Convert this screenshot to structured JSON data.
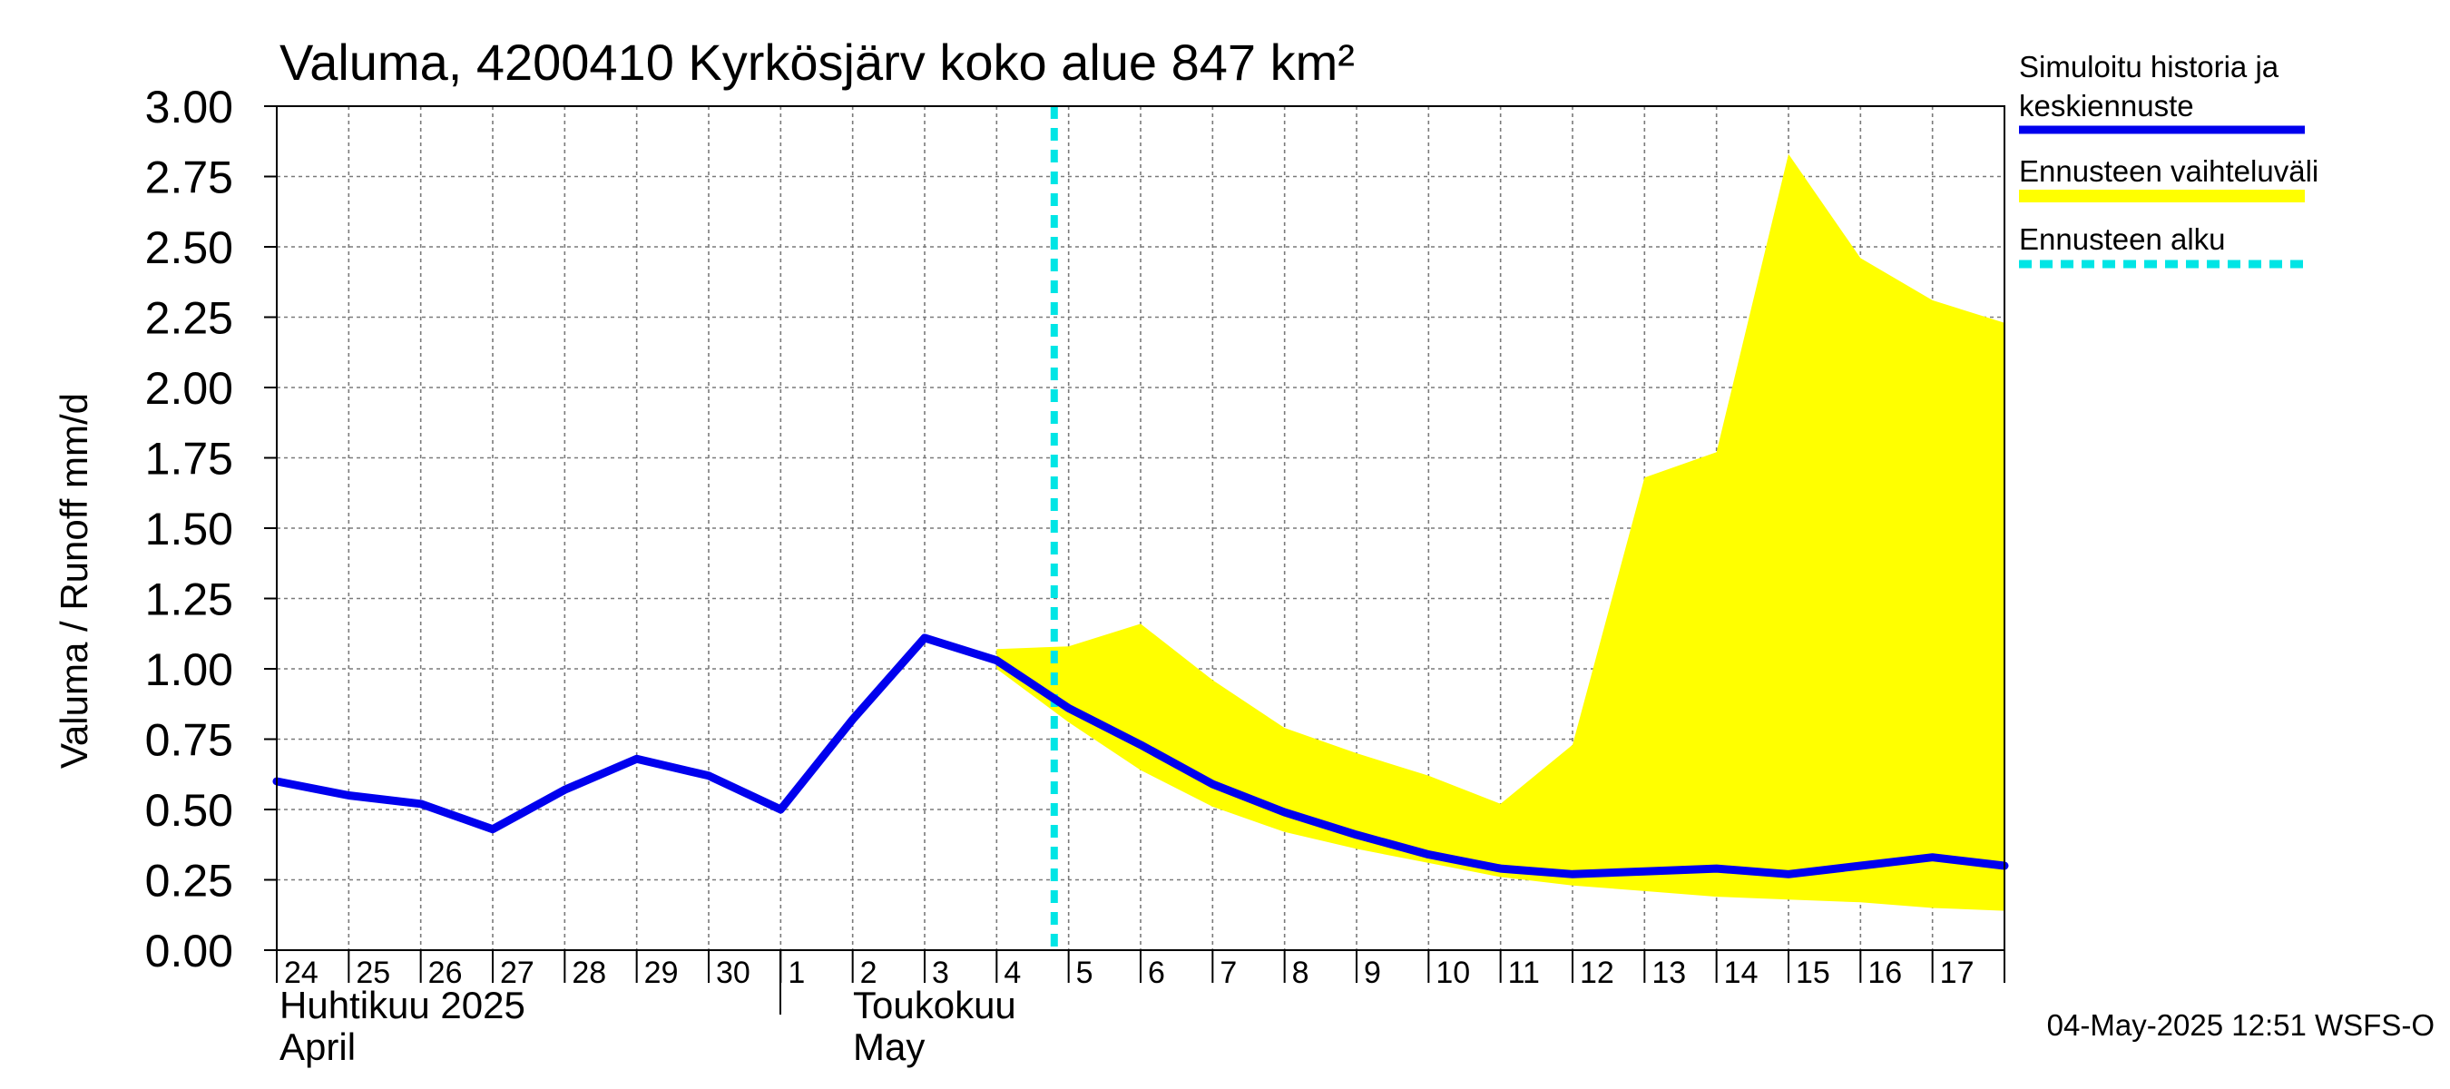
{
  "chart_data": {
    "type": "line",
    "title": "Valuma, 4200410 Kyrkösjärv koko alue 847 km²",
    "ylabel": "Valuma / Runoff     mm/d",
    "ylim": [
      0,
      3.0
    ],
    "yticks": [
      "0.00",
      "0.25",
      "0.50",
      "0.75",
      "1.00",
      "1.25",
      "1.50",
      "1.75",
      "2.00",
      "2.25",
      "2.50",
      "2.75",
      "3.00"
    ],
    "xticks": [
      "24",
      "25",
      "26",
      "27",
      "28",
      "29",
      "30",
      "1",
      "2",
      "3",
      "4",
      "5",
      "6",
      "7",
      "8",
      "9",
      "10",
      "11",
      "12",
      "13",
      "14",
      "15",
      "16",
      "17"
    ],
    "month_labels": {
      "april_fi": "Huhtikuu  2025",
      "april_en": "April",
      "may_fi": "Toukokuu",
      "may_en": "May"
    },
    "forecast_start_day": 10.8,
    "series": [
      {
        "name": "Simuloitu historia ja keskiennuste",
        "color": "#0000ee",
        "x": [
          0,
          1,
          2,
          3,
          4,
          5,
          6,
          7,
          8,
          9,
          10,
          11,
          12,
          13,
          14,
          15,
          16,
          17,
          18,
          19,
          20,
          21,
          22,
          23,
          24
        ],
        "values": [
          0.6,
          0.55,
          0.52,
          0.43,
          0.57,
          0.68,
          0.62,
          0.5,
          0.82,
          1.11,
          1.03,
          0.86,
          0.73,
          0.59,
          0.49,
          0.41,
          0.34,
          0.29,
          0.27,
          0.28,
          0.29,
          0.27,
          0.3,
          0.33,
          0.3
        ]
      },
      {
        "name": "Ennusteen vaihteluväli",
        "color": "#ffff00",
        "x": [
          10,
          11,
          12,
          13,
          14,
          15,
          16,
          17,
          18,
          19,
          20,
          21,
          22,
          23,
          24
        ],
        "upper": [
          1.07,
          1.08,
          1.16,
          0.96,
          0.79,
          0.7,
          0.62,
          0.52,
          0.73,
          1.68,
          1.77,
          2.83,
          2.46,
          2.31,
          2.23
        ],
        "lower": [
          1.0,
          0.81,
          0.64,
          0.51,
          0.42,
          0.36,
          0.31,
          0.26,
          0.23,
          0.21,
          0.19,
          0.18,
          0.17,
          0.15,
          0.14
        ]
      }
    ],
    "legend": {
      "placement": "right",
      "items": [
        {
          "line1": "Simuloitu historia ja",
          "line2": "keskiennuste",
          "color": "#0000ee",
          "style": "solid"
        },
        {
          "line1": "Ennusteen vaihteluväli",
          "line2": "",
          "color": "#ffff00",
          "style": "solid"
        },
        {
          "line1": "Ennusteen alku",
          "line2": "",
          "color": "#00e5e5",
          "style": "dashed"
        }
      ]
    },
    "grid": true
  },
  "footer": {
    "timestamp": "04-May-2025 12:51 WSFS-O"
  }
}
